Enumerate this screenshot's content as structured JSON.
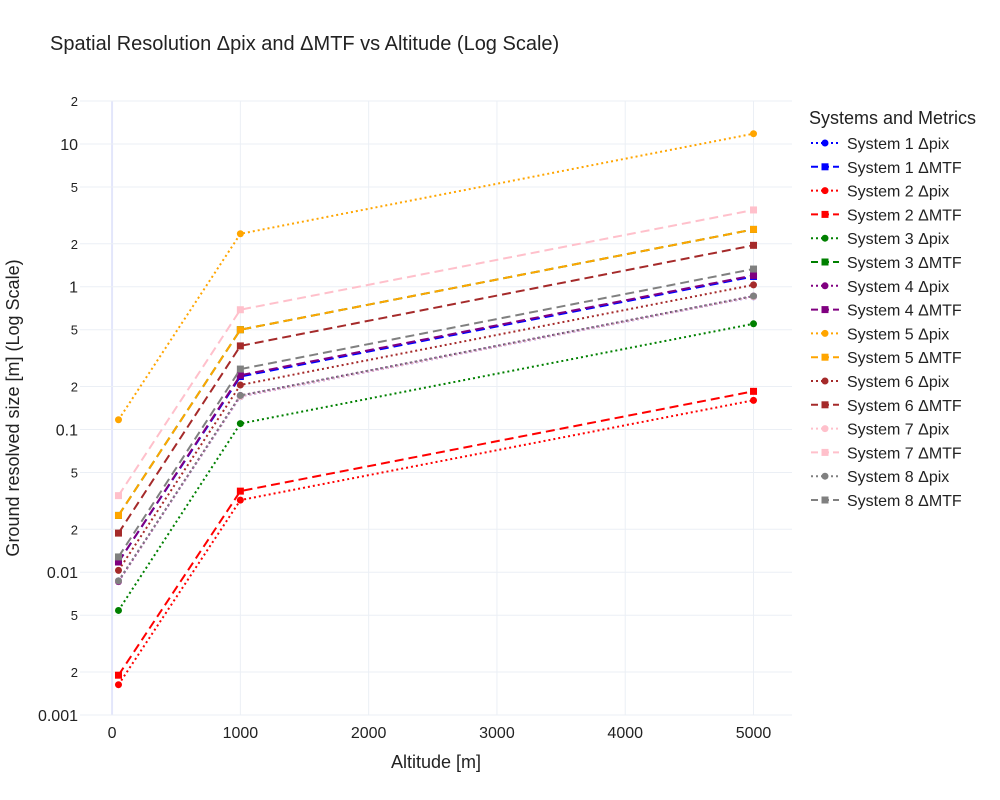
{
  "chart_data": {
    "type": "line",
    "title": "Spatial Resolution Δpix and ΔMTF vs Altitude (Log Scale)",
    "xlabel": "Altitude [m]",
    "ylabel": "Ground resolved size [m] (Log Scale)",
    "y_scale": "log",
    "xlim": [
      -250,
      5300
    ],
    "ylim": [
      0.001,
      20
    ],
    "x_ticks": [
      "0",
      "1000",
      "2000",
      "3000",
      "4000",
      "5000"
    ],
    "x_tick_values": [
      0,
      1000,
      2000,
      3000,
      4000,
      5000
    ],
    "y_major_ticks": [
      {
        "value": 0.001,
        "label": "0.001"
      },
      {
        "value": 0.01,
        "label": "0.01"
      },
      {
        "value": 0.1,
        "label": "0.1"
      },
      {
        "value": 1,
        "label": "1"
      },
      {
        "value": 10,
        "label": "10"
      }
    ],
    "y_minor_ticks": [
      {
        "value": 0.002,
        "label": "2"
      },
      {
        "value": 0.005,
        "label": "5"
      },
      {
        "value": 0.02,
        "label": "2"
      },
      {
        "value": 0.05,
        "label": "5"
      },
      {
        "value": 0.2,
        "label": "2"
      },
      {
        "value": 0.5,
        "label": "5"
      },
      {
        "value": 2,
        "label": "2"
      },
      {
        "value": 5,
        "label": "5"
      },
      {
        "value": 20,
        "label": "2"
      }
    ],
    "grid": true,
    "legend_title": "Systems and Metrics",
    "legend_position": "right",
    "x": [
      50,
      1000,
      5000
    ],
    "series": [
      {
        "name": "System 1 Δpix",
        "color": "#0000ff",
        "dash": "dot",
        "marker": "circle",
        "values": [
          0.0087,
          0.17,
          0.85
        ]
      },
      {
        "name": "System 1 ΔMTF",
        "color": "#0000ff",
        "dash": "dash",
        "marker": "square",
        "values": [
          0.0118,
          0.235,
          1.18
        ]
      },
      {
        "name": "System 2 Δpix",
        "color": "#ff0000",
        "dash": "dot",
        "marker": "circle",
        "values": [
          0.00163,
          0.032,
          0.16
        ]
      },
      {
        "name": "System 2 ΔMTF",
        "color": "#ff0000",
        "dash": "dash",
        "marker": "square",
        "values": [
          0.0019,
          0.037,
          0.185
        ]
      },
      {
        "name": "System 3 Δpix",
        "color": "#008000",
        "dash": "dot",
        "marker": "circle",
        "values": [
          0.0054,
          0.11,
          0.55
        ]
      },
      {
        "name": "System 3 ΔMTF",
        "color": "#008000",
        "dash": "dash",
        "marker": "square",
        "values": [
          0.025,
          0.5,
          2.52
        ]
      },
      {
        "name": "System 4 Δpix",
        "color": "#800080",
        "dash": "dot",
        "marker": "circle",
        "values": [
          0.0086,
          0.173,
          0.86
        ]
      },
      {
        "name": "System 4 ΔMTF",
        "color": "#800080",
        "dash": "dash",
        "marker": "square",
        "values": [
          0.0118,
          0.24,
          1.2
        ]
      },
      {
        "name": "System 5 Δpix",
        "color": "#ffa500",
        "dash": "dot",
        "marker": "circle",
        "values": [
          0.117,
          2.35,
          11.8
        ]
      },
      {
        "name": "System 5 ΔMTF",
        "color": "#ffa500",
        "dash": "dash",
        "marker": "square",
        "values": [
          0.025,
          0.5,
          2.52
        ]
      },
      {
        "name": "System 6 Δpix",
        "color": "#a52a2a",
        "dash": "dot",
        "marker": "circle",
        "values": [
          0.0103,
          0.205,
          1.03
        ]
      },
      {
        "name": "System 6 ΔMTF",
        "color": "#a52a2a",
        "dash": "dash",
        "marker": "square",
        "values": [
          0.0188,
          0.385,
          1.95
        ]
      },
      {
        "name": "System 7 Δpix",
        "color": "#ffc0cb",
        "dash": "dot",
        "marker": "circle",
        "values": [
          0.0087,
          0.17,
          0.85
        ]
      },
      {
        "name": "System 7 ΔMTF",
        "color": "#ffc0cb",
        "dash": "dash",
        "marker": "square",
        "values": [
          0.0344,
          0.69,
          3.45
        ]
      },
      {
        "name": "System 8 Δpix",
        "color": "#808080",
        "dash": "dot",
        "marker": "circle",
        "values": [
          0.0087,
          0.173,
          0.86
        ]
      },
      {
        "name": "System 8 ΔMTF",
        "color": "#808080",
        "dash": "dash",
        "marker": "square",
        "values": [
          0.0128,
          0.265,
          1.33
        ]
      }
    ]
  }
}
